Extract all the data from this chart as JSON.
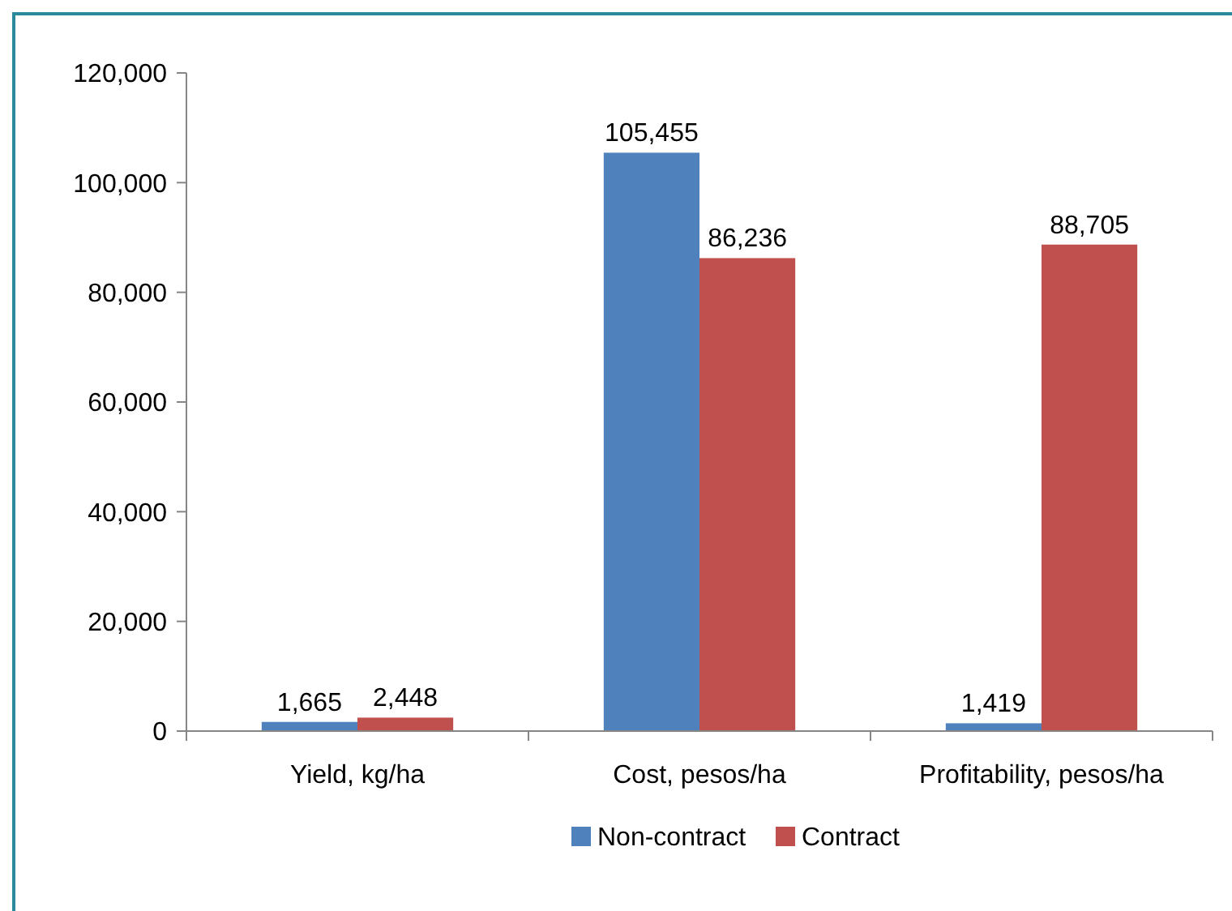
{
  "chart_data": {
    "type": "bar",
    "categories": [
      "Yield, kg/ha",
      "Cost, pesos/ha",
      "Profitability, pesos/ha"
    ],
    "series": [
      {
        "name": "Non-contract",
        "color": "#4f81bd",
        "values": [
          1665,
          105455,
          1419
        ],
        "value_labels": [
          "1,665",
          "105,455",
          "1,419"
        ]
      },
      {
        "name": "Contract",
        "color": "#c0504d",
        "values": [
          2448,
          86236,
          88705
        ],
        "value_labels": [
          "2,448",
          "86,236",
          "88,705"
        ]
      }
    ],
    "ylim": [
      0,
      120000
    ],
    "yticks": [
      0,
      {
        "value": 20000,
        "label": "20,000"
      },
      {
        "value": 40000,
        "label": "40,000"
      },
      {
        "value": 60000,
        "label": "60,000"
      },
      {
        "value": 80000,
        "label": "80,000"
      },
      {
        "value": 100000,
        "label": "100,000"
      },
      {
        "value": 120000,
        "label": "120,000"
      }
    ],
    "grid": false,
    "legend": "bottom"
  }
}
